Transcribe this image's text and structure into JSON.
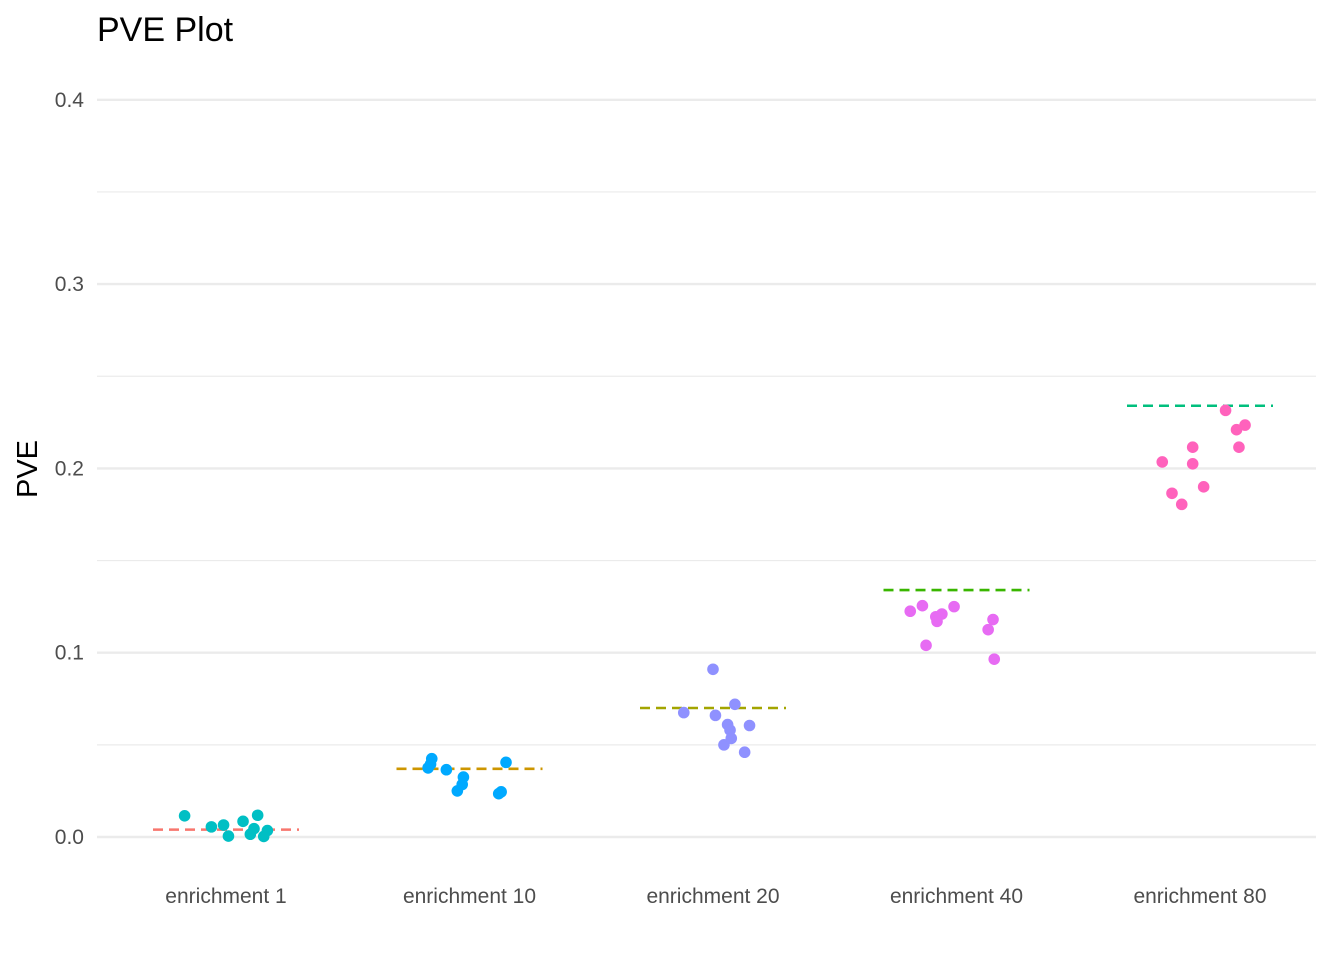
{
  "chart_data": {
    "type": "scatter",
    "title": "PVE Plot",
    "xlabel": "",
    "ylabel": "PVE",
    "ylim": [
      -0.015,
      0.4
    ],
    "y_ticks": [
      "0.0",
      "0.1",
      "0.2",
      "0.3",
      "0.4"
    ],
    "grid": true,
    "legend": "none",
    "categories": [
      "enrichment 1",
      "enrichment 10",
      "enrichment 20",
      "enrichment 40",
      "enrichment 80"
    ],
    "series": [
      {
        "category": "enrichment 1",
        "point_color": "#00bfc4",
        "reference_color": "#f8766d",
        "reference": 0.004,
        "points": [
          {
            "offset": -0.17,
            "y": 0.0115
          },
          {
            "offset": -0.06,
            "y": 0.0055
          },
          {
            "offset": -0.01,
            "y": 0.0065
          },
          {
            "offset": 0.01,
            "y": 0.0005
          },
          {
            "offset": 0.07,
            "y": 0.0085
          },
          {
            "offset": 0.1,
            "y": 0.0015
          },
          {
            "offset": 0.115,
            "y": 0.0045
          },
          {
            "offset": 0.13,
            "y": 0.0118
          },
          {
            "offset": 0.155,
            "y": 0.0003
          },
          {
            "offset": 0.17,
            "y": 0.0035
          }
        ]
      },
      {
        "category": "enrichment 10",
        "point_color": "#00a9ff",
        "reference_color": "#cd9600",
        "reference": 0.037,
        "points": [
          {
            "offset": -0.17,
            "y": 0.0375
          },
          {
            "offset": -0.16,
            "y": 0.0395
          },
          {
            "offset": -0.155,
            "y": 0.0425
          },
          {
            "offset": -0.095,
            "y": 0.0365
          },
          {
            "offset": -0.05,
            "y": 0.025
          },
          {
            "offset": -0.03,
            "y": 0.0285
          },
          {
            "offset": -0.025,
            "y": 0.0325
          },
          {
            "offset": 0.12,
            "y": 0.0235
          },
          {
            "offset": 0.13,
            "y": 0.0245
          },
          {
            "offset": 0.15,
            "y": 0.0405
          }
        ]
      },
      {
        "category": "enrichment 20",
        "point_color": "#8f91ff",
        "reference_color": "#a3a500",
        "reference": 0.07,
        "points": [
          {
            "offset": -0.12,
            "y": 0.0675
          },
          {
            "offset": 0.0,
            "y": 0.091
          },
          {
            "offset": 0.01,
            "y": 0.066
          },
          {
            "offset": 0.045,
            "y": 0.05
          },
          {
            "offset": 0.06,
            "y": 0.061
          },
          {
            "offset": 0.07,
            "y": 0.058
          },
          {
            "offset": 0.075,
            "y": 0.0535
          },
          {
            "offset": 0.09,
            "y": 0.072
          },
          {
            "offset": 0.13,
            "y": 0.046
          },
          {
            "offset": 0.15,
            "y": 0.0605
          }
        ]
      },
      {
        "category": "enrichment 40",
        "point_color": "#e76bf3",
        "reference_color": "#39b600",
        "reference": 0.134,
        "points": [
          {
            "offset": -0.19,
            "y": 0.1225
          },
          {
            "offset": -0.14,
            "y": 0.1255
          },
          {
            "offset": -0.125,
            "y": 0.104
          },
          {
            "offset": -0.085,
            "y": 0.1195
          },
          {
            "offset": -0.08,
            "y": 0.117
          },
          {
            "offset": -0.06,
            "y": 0.121
          },
          {
            "offset": -0.01,
            "y": 0.125
          },
          {
            "offset": 0.13,
            "y": 0.1125
          },
          {
            "offset": 0.15,
            "y": 0.118
          },
          {
            "offset": 0.155,
            "y": 0.0965
          }
        ]
      },
      {
        "category": "enrichment 80",
        "point_color": "#ff62bc",
        "reference_color": "#00bf7d",
        "reference": 0.234,
        "points": [
          {
            "offset": -0.155,
            "y": 0.2035
          },
          {
            "offset": -0.115,
            "y": 0.1865
          },
          {
            "offset": -0.075,
            "y": 0.1805
          },
          {
            "offset": -0.03,
            "y": 0.2115
          },
          {
            "offset": -0.03,
            "y": 0.2025
          },
          {
            "offset": 0.015,
            "y": 0.19
          },
          {
            "offset": 0.105,
            "y": 0.2315
          },
          {
            "offset": 0.15,
            "y": 0.221
          },
          {
            "offset": 0.16,
            "y": 0.2115
          },
          {
            "offset": 0.185,
            "y": 0.2235
          }
        ]
      }
    ]
  }
}
